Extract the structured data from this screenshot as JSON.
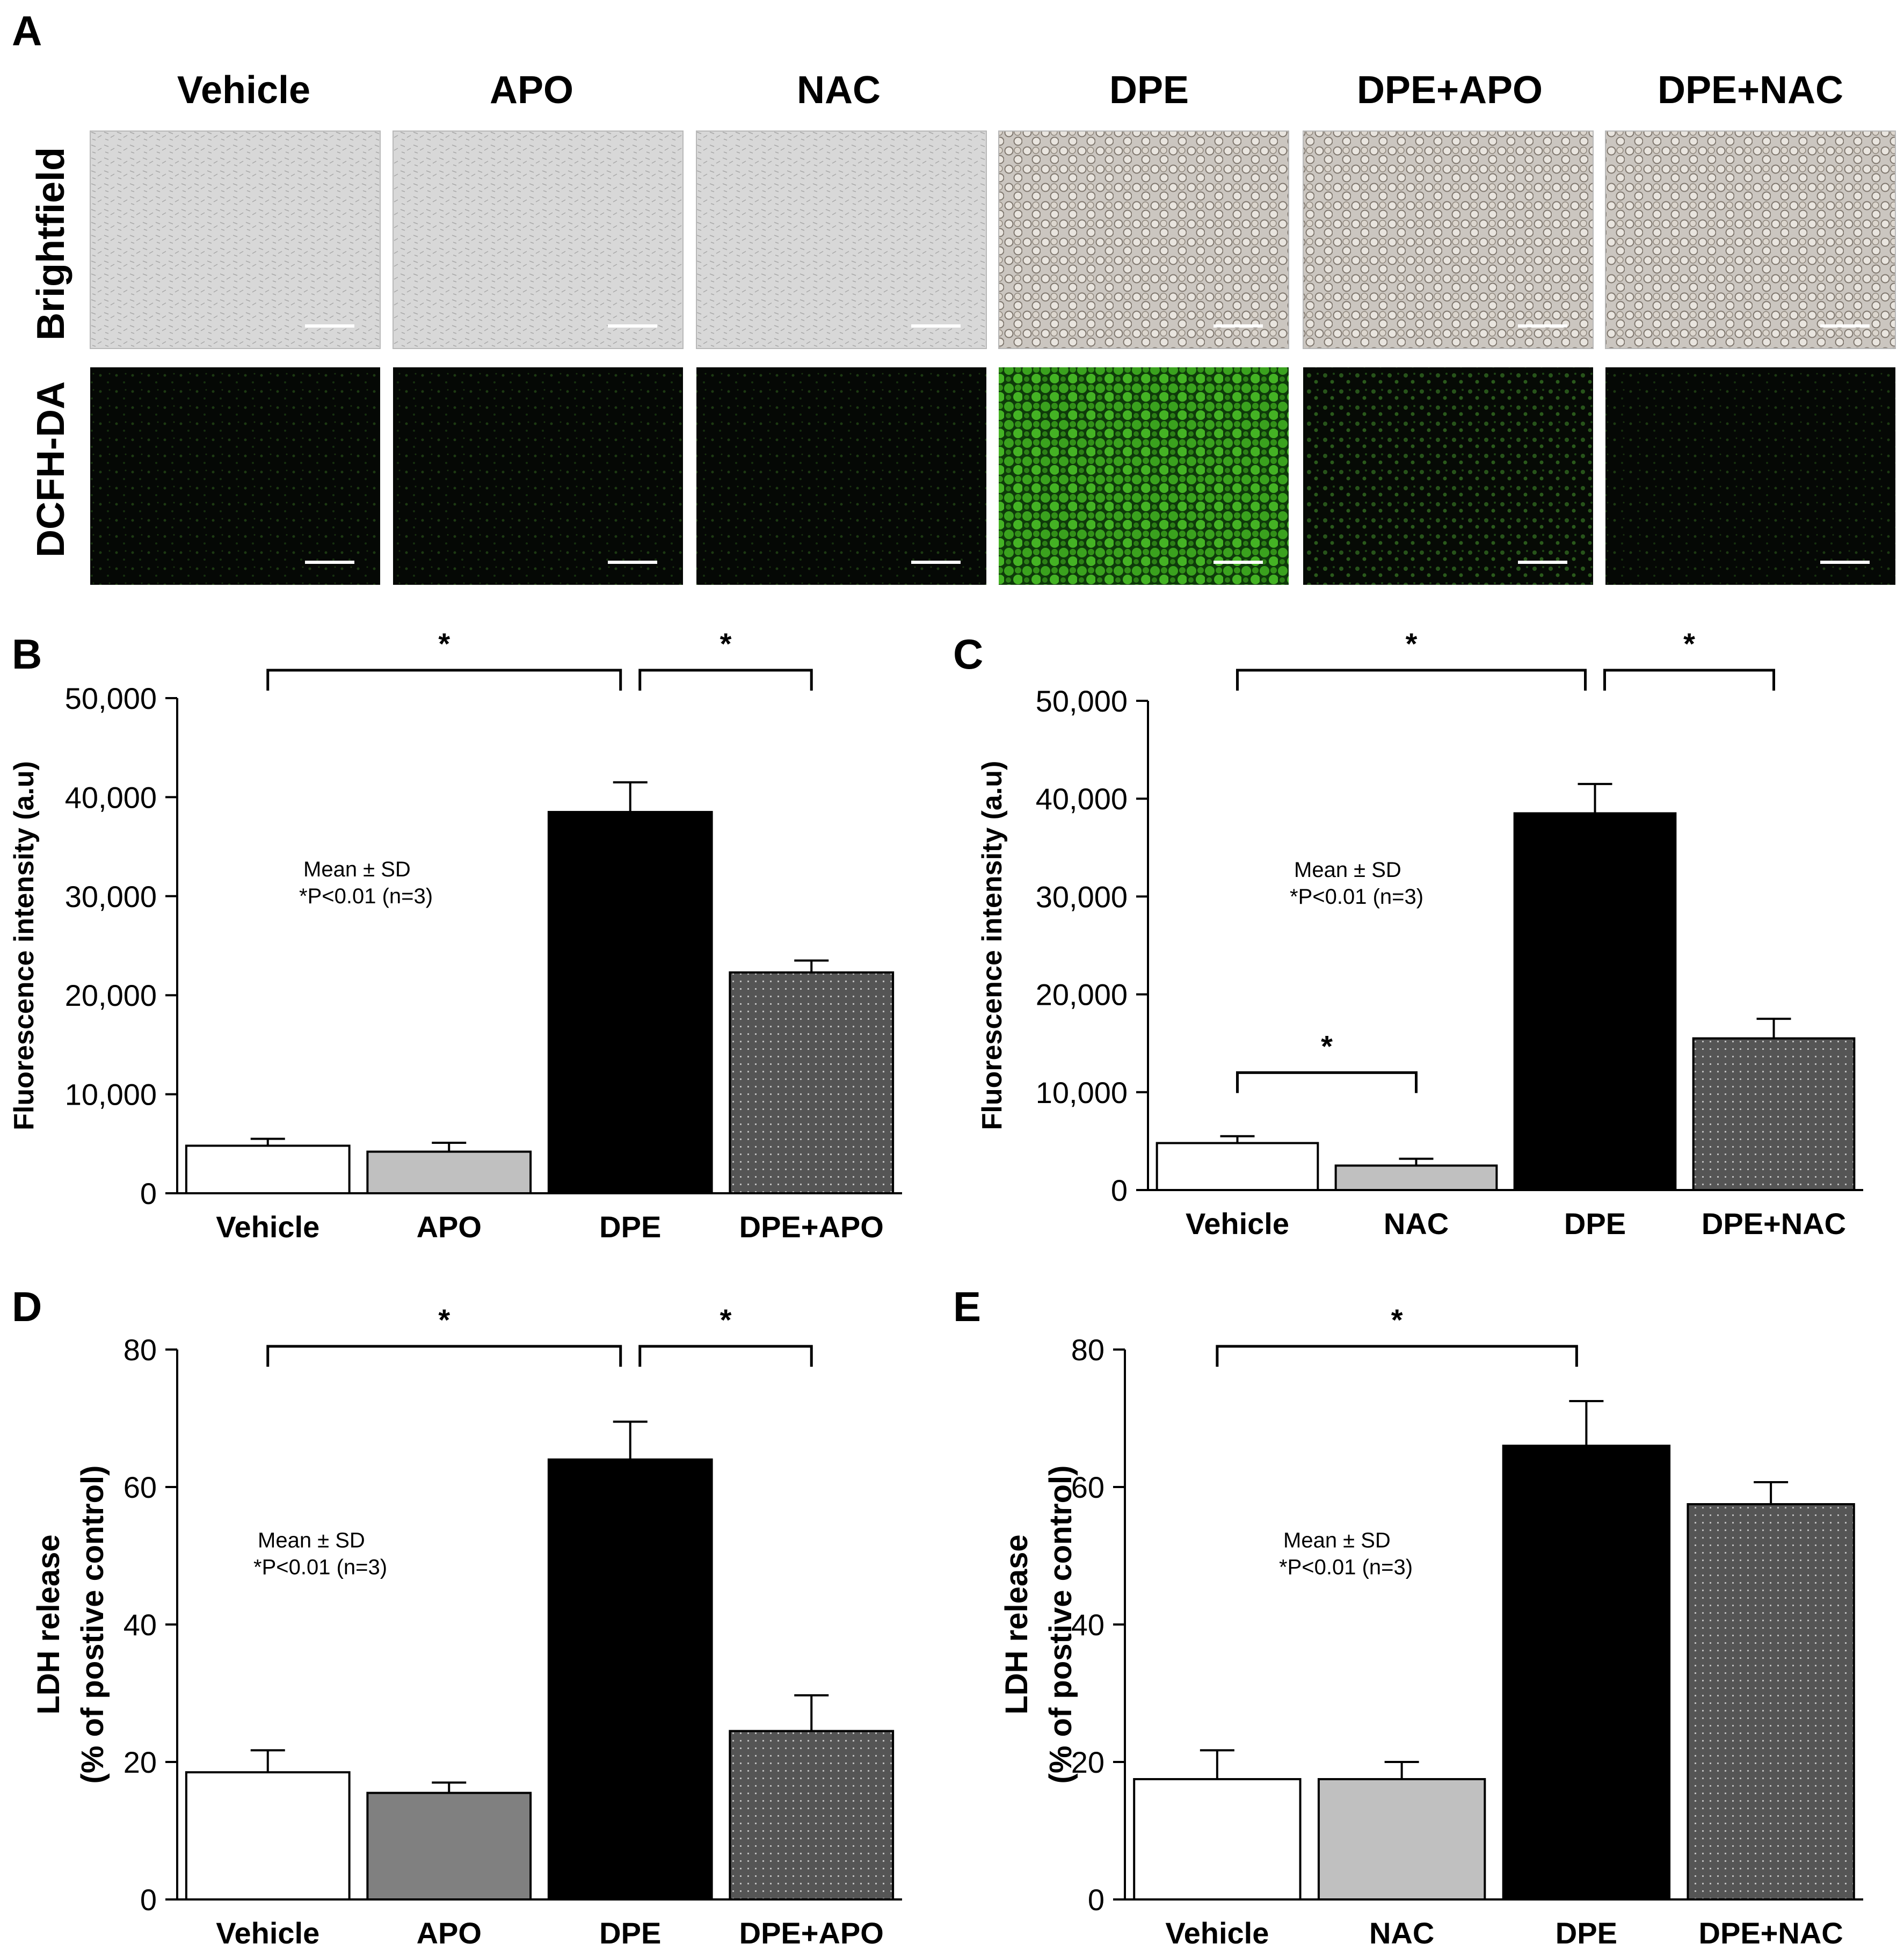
{
  "figure": {
    "panel_a": {
      "letter": "A",
      "columns": [
        "Vehicle",
        "APO",
        "NAC",
        "DPE",
        "DPE+APO",
        "DPE+NAC"
      ],
      "rows": [
        "Brightfield",
        "DCFH-DA"
      ]
    }
  },
  "chart_data": [
    {
      "panel": "B",
      "type": "bar",
      "ylabel": "Fluorescence intensity (a.u)",
      "categories": [
        "Vehicle",
        "APO",
        "DPE",
        "DPE+APO"
      ],
      "values": [
        4800,
        4200,
        38500,
        22300
      ],
      "errors": [
        700,
        900,
        3000,
        1200
      ],
      "fills": [
        "#ffffff",
        "#c0c0c0",
        "#000000",
        "#555555"
      ],
      "ylim": [
        0,
        50000
      ],
      "yticks": [
        0,
        10000,
        20000,
        30000,
        40000,
        50000
      ],
      "ytick_labels": [
        "0",
        "10,000",
        "20,000",
        "30,000",
        "40,000",
        "50,000"
      ],
      "note": [
        "Mean ± SD",
        "*P<0.01 (n=3)"
      ],
      "significance": [
        {
          "from": 0,
          "to": 2,
          "level": "top",
          "label": "*"
        },
        {
          "from": 2,
          "to": 3,
          "level": "top",
          "label": "*"
        }
      ]
    },
    {
      "panel": "C",
      "type": "bar",
      "ylabel": "Fluorescence intensity (a.u)",
      "categories": [
        "Vehicle",
        "NAC",
        "DPE",
        "DPE+NAC"
      ],
      "values": [
        4800,
        2500,
        38500,
        15500
      ],
      "errors": [
        700,
        700,
        3000,
        2000
      ],
      "fills": [
        "#ffffff",
        "#c0c0c0",
        "#000000",
        "#555555"
      ],
      "ylim": [
        0,
        50000
      ],
      "yticks": [
        0,
        10000,
        20000,
        30000,
        40000,
        50000
      ],
      "ytick_labels": [
        "0",
        "10,000",
        "20,000",
        "30,000",
        "40,000",
        "50,000"
      ],
      "note": [
        "Mean ± SD",
        "*P<0.01 (n=3)"
      ],
      "significance": [
        {
          "from": 0,
          "to": 2,
          "level": "top",
          "label": "*"
        },
        {
          "from": 2,
          "to": 3,
          "level": "top",
          "label": "*"
        },
        {
          "from": 0,
          "to": 1,
          "level": 12000,
          "label": "*"
        }
      ]
    },
    {
      "panel": "D",
      "type": "bar",
      "ylabel": [
        "LDH release",
        "(% of postive control)"
      ],
      "categories": [
        "Vehicle",
        "APO",
        "DPE",
        "DPE+APO"
      ],
      "values": [
        18.5,
        15.5,
        64,
        24.5
      ],
      "errors": [
        3.2,
        1.5,
        5.5,
        5.2
      ],
      "fills": [
        "#ffffff",
        "#808080",
        "#000000",
        "#555555"
      ],
      "ylim": [
        0,
        80
      ],
      "yticks": [
        0,
        20,
        40,
        60,
        80
      ],
      "ytick_labels": [
        "0",
        "20",
        "40",
        "60",
        "80"
      ],
      "note": [
        "Mean ± SD",
        "*P<0.01 (n=3)"
      ],
      "significance": [
        {
          "from": 0,
          "to": 2,
          "level": "top",
          "label": "*"
        },
        {
          "from": 2,
          "to": 3,
          "level": "top",
          "label": "*"
        }
      ]
    },
    {
      "panel": "E",
      "type": "bar",
      "ylabel": [
        "LDH release",
        "(% of postive control)"
      ],
      "categories": [
        "Vehicle",
        "NAC",
        "DPE",
        "DPE+NAC"
      ],
      "values": [
        17.5,
        17.5,
        66,
        57.5
      ],
      "errors": [
        4.2,
        2.5,
        6.5,
        3.2
      ],
      "fills": [
        "#ffffff",
        "#c0c0c0",
        "#000000",
        "#555555"
      ],
      "ylim": [
        0,
        80
      ],
      "yticks": [
        0,
        20,
        40,
        60,
        80
      ],
      "ytick_labels": [
        "0",
        "20",
        "40",
        "60",
        "80"
      ],
      "note": [
        "Mean ± SD",
        "*P<0.01 (n=3)"
      ],
      "significance": [
        {
          "from": 0,
          "to": 2,
          "level": "top",
          "label": "*"
        }
      ]
    }
  ]
}
